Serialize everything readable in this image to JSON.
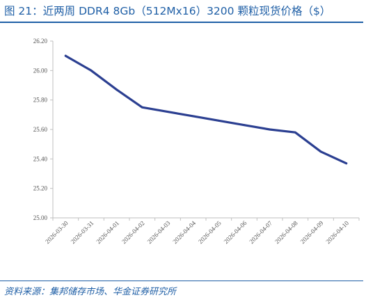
{
  "header": {
    "title": "图 21：近两周 DDR4 8Gb（512Mx16）3200 颗粒现货价格（$）"
  },
  "footer": {
    "source": "资料来源：集邦储存市场、华金证券研究所"
  },
  "colors": {
    "accent": "#1f5fa6",
    "line": "#2b3f91",
    "axis": "#bfbfbf"
  },
  "chart_data": {
    "type": "line",
    "categories": [
      "2026-03-30",
      "2026-03-31",
      "2026-04-01",
      "2026-04-02",
      "2026-04-03",
      "2026-04-04",
      "2026-04-05",
      "2026-04-06",
      "2026-04-07",
      "2026-04-08",
      "2026-04-09",
      "2026-04-10"
    ],
    "series": [
      {
        "values": [
          26.1,
          26.0,
          25.87,
          25.75,
          25.72,
          25.69,
          25.66,
          25.63,
          25.6,
          25.58,
          25.45,
          25.37
        ]
      }
    ],
    "yticks": [
      "25.00",
      "25.20",
      "25.40",
      "25.60",
      "25.80",
      "26.00",
      "26.20"
    ],
    "ylim": [
      25.0,
      26.2
    ],
    "title": "",
    "xlabel": "",
    "ylabel": "",
    "grid": false,
    "legend": "none"
  }
}
